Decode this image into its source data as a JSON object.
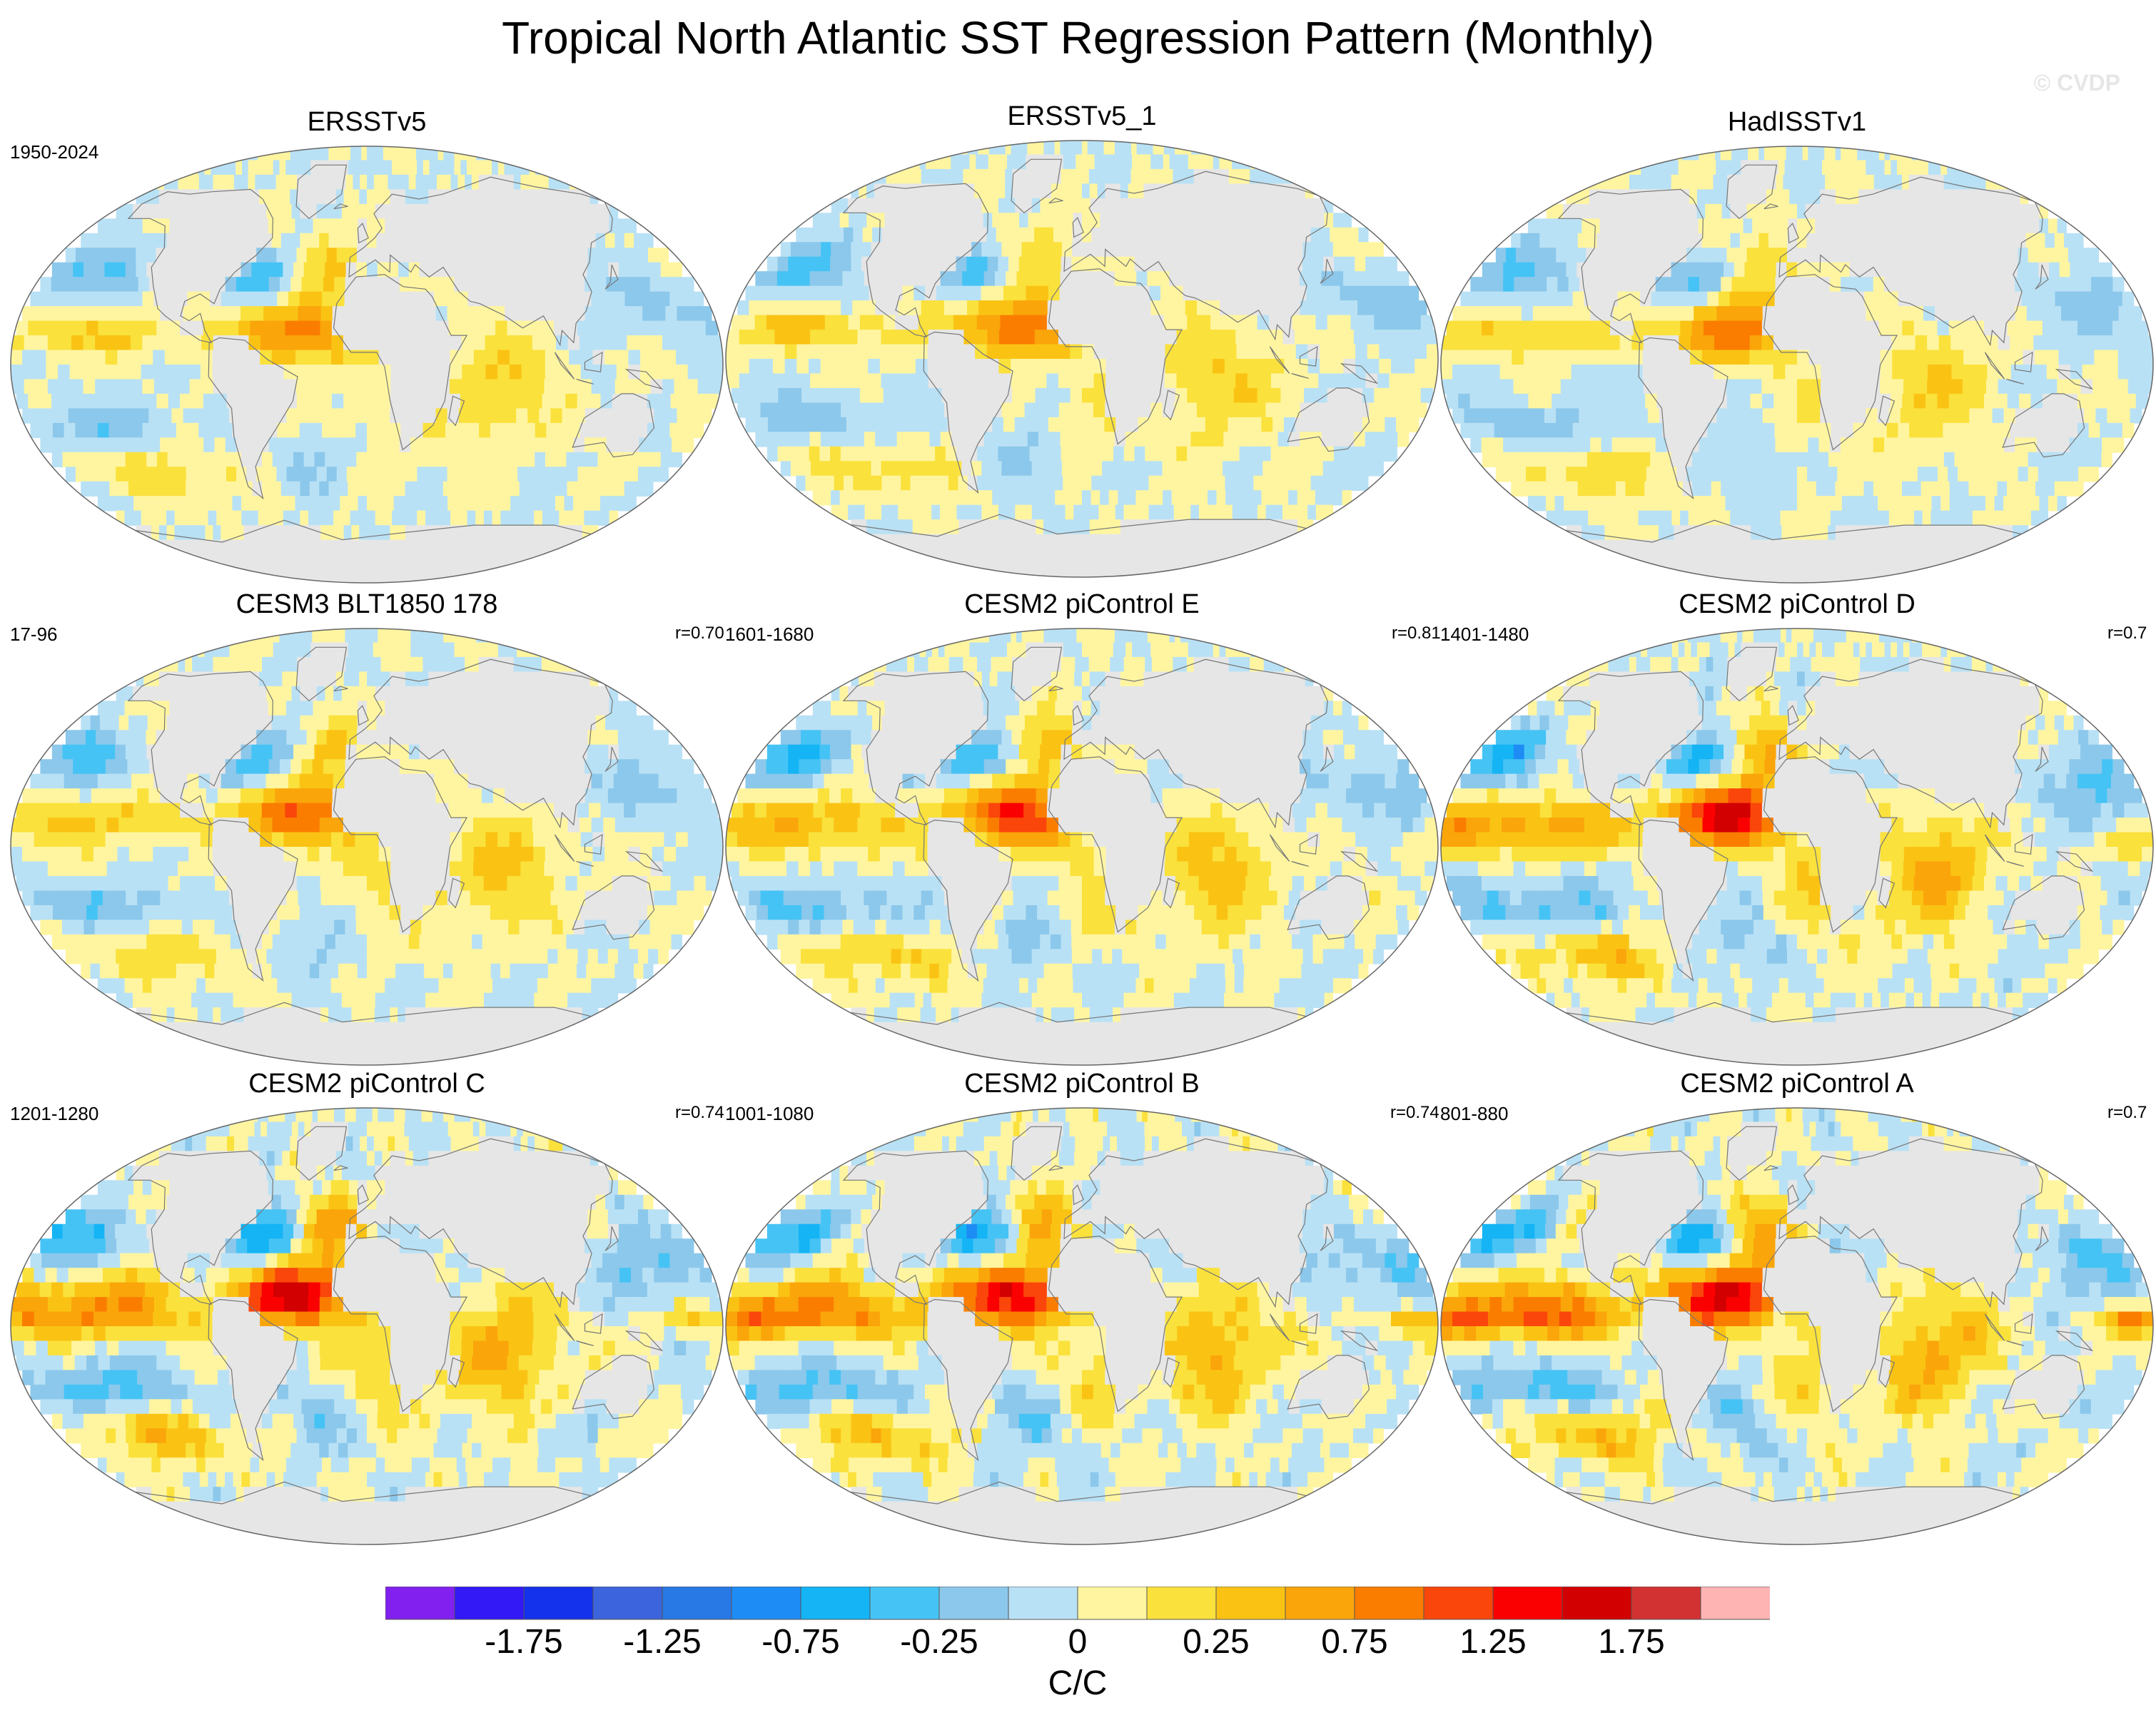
{
  "title": "Tropical North Atlantic SST Regression Pattern (Monthly)",
  "watermark": "© CVDP",
  "panels": [
    {
      "title": "ERSSTv5",
      "period": "1950-2024",
      "corr": "",
      "seed": 1,
      "amp": 0.9
    },
    {
      "title": "ERSSTv5_1",
      "period": "",
      "corr": "",
      "seed": 2,
      "amp": 0.95
    },
    {
      "title": "HadISSTv1",
      "period": "",
      "corr": "",
      "seed": 3,
      "amp": 0.9
    },
    {
      "title": "CESM3 BLT1850 178",
      "period": "17-96",
      "corr": "r=0.70",
      "seed": 4,
      "amp": 1.0
    },
    {
      "title": "CESM2 piControl E",
      "period": "1601-1680",
      "corr": "r=0.81",
      "seed": 5,
      "amp": 1.2
    },
    {
      "title": "CESM2 piControl D",
      "period": "1401-1480",
      "corr": "r=0.7",
      "seed": 6,
      "amp": 1.4
    },
    {
      "title": "CESM2 piControl C",
      "period": "1201-1280",
      "corr": "r=0.74",
      "seed": 7,
      "amp": 1.45
    },
    {
      "title": "CESM2 piControl B",
      "period": "1001-1080",
      "corr": "r=0.74",
      "seed": 8,
      "amp": 1.4
    },
    {
      "title": "CESM2 piControl A",
      "period": "801-880",
      "corr": "r=0.7",
      "seed": 9,
      "amp": 1.45
    }
  ],
  "colorbar": {
    "colors": [
      "#8220f0",
      "#3219f5",
      "#1432eb",
      "#3c64dc",
      "#2878e6",
      "#1e8cf5",
      "#14b4f5",
      "#46c3f5",
      "#8cc8eb",
      "#b9e1f5",
      "#fff5a0",
      "#fae13c",
      "#fac314",
      "#faa50a",
      "#fa7d00",
      "#fa460a",
      "#fa0000",
      "#d20000",
      "#d23232",
      "#ffb4b4"
    ],
    "ticks": [
      {
        "label": "-1.75",
        "index": 2
      },
      {
        "label": "-1.25",
        "index": 4
      },
      {
        "label": "-0.75",
        "index": 6
      },
      {
        "label": "-0.25",
        "index": 8
      },
      {
        "label": "0",
        "index": 10
      },
      {
        "label": "0.25",
        "index": 12
      },
      {
        "label": "0.75",
        "index": 14
      },
      {
        "label": "1.25",
        "index": 16
      },
      {
        "label": "1.75",
        "index": 18
      }
    ],
    "unit": "C/C"
  },
  "land_color": "#e6e6e6"
}
